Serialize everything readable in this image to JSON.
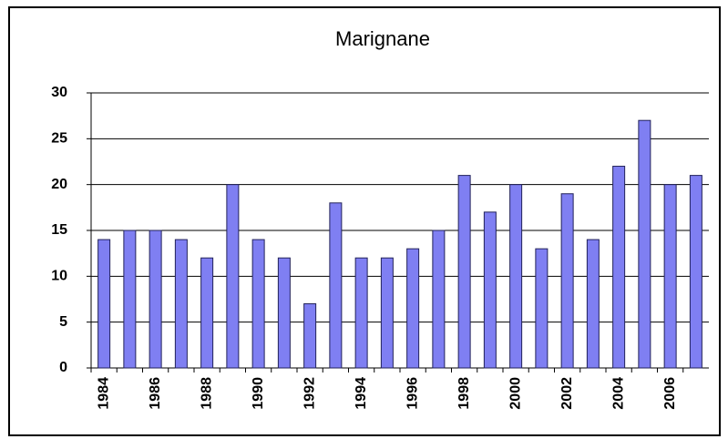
{
  "chart_data": {
    "type": "bar",
    "title": "Marignane",
    "categories": [
      "1984",
      null,
      "1986",
      null,
      "1988",
      null,
      "1990",
      null,
      "1992",
      null,
      "1994",
      null,
      "1996",
      null,
      "1998",
      null,
      "2000",
      null,
      "2002",
      null,
      "2004",
      null,
      "2006",
      null
    ],
    "values": [
      14,
      15,
      15,
      14,
      12,
      20,
      14,
      12,
      7,
      18,
      12,
      12,
      13,
      15,
      21,
      17,
      20,
      13,
      19,
      14,
      22,
      27,
      20,
      21
    ],
    "color": "#7f7ff2",
    "ylim": [
      0,
      30
    ],
    "yticks": [
      0,
      5,
      10,
      15,
      20,
      25,
      30
    ],
    "grid": true
  }
}
